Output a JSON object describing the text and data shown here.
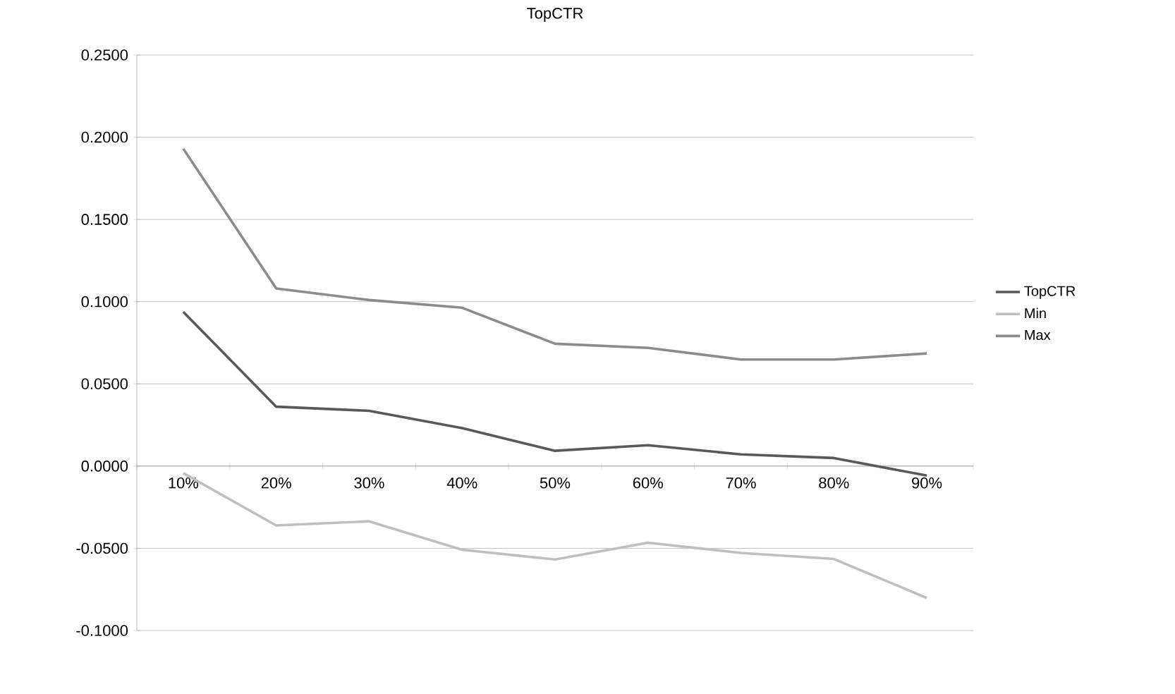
{
  "chart_data": {
    "type": "line",
    "title": "TopCTR",
    "categories": [
      "10%",
      "20%",
      "30%",
      "40%",
      "50%",
      "60%",
      "70%",
      "80%",
      "90%"
    ],
    "series": [
      {
        "name": "TopCTR",
        "color": "#595959",
        "values": [
          0.0938,
          0.0361,
          0.0336,
          0.0231,
          0.0093,
          0.0127,
          0.0071,
          0.0049,
          -0.0058
        ]
      },
      {
        "name": "Min",
        "color": "#bfbfbf",
        "values": [
          -0.0043,
          -0.0361,
          -0.0336,
          -0.0509,
          -0.0568,
          -0.0466,
          -0.0528,
          -0.0565,
          -0.0802
        ]
      },
      {
        "name": "Max",
        "color": "#8c8c8c",
        "values": [
          0.193,
          0.108,
          0.101,
          0.0963,
          0.0744,
          0.0719,
          0.0648,
          0.0648,
          0.0685
        ]
      }
    ],
    "ylim": [
      -0.1,
      0.25
    ],
    "yticks": [
      {
        "value": -0.1,
        "label": "-0.1000"
      },
      {
        "value": -0.05,
        "label": "-0.0500"
      },
      {
        "value": 0,
        "label": "0.0000"
      },
      {
        "value": 0.05,
        "label": "0.0500"
      },
      {
        "value": 0.1,
        "label": "0.1000"
      },
      {
        "value": 0.15,
        "label": "0.1500"
      },
      {
        "value": 0.2,
        "label": "0.2000"
      },
      {
        "value": 0.25,
        "label": "0.2500"
      }
    ],
    "grid": "y",
    "legend": "right",
    "marker": "none",
    "line_style": "solid"
  }
}
